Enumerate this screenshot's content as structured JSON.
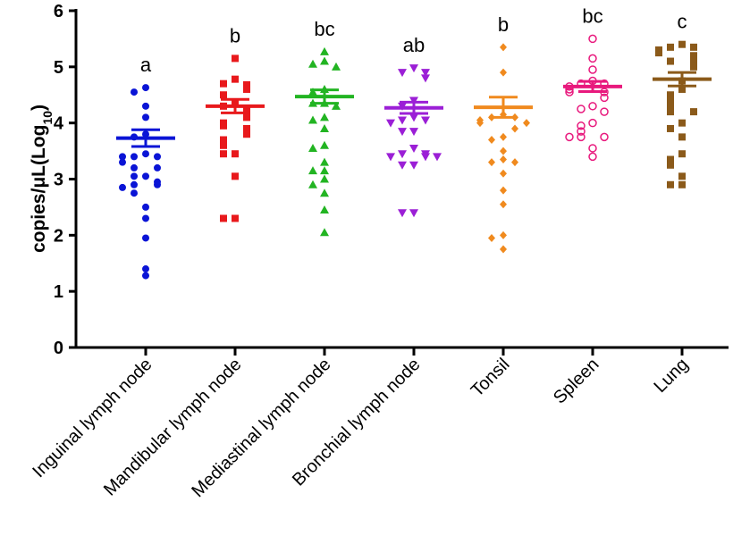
{
  "chart_data": {
    "type": "scatter",
    "subtype": "dot-plot with mean and SEM",
    "ylabel": "copies/μL(Log",
    "ylabel_subscript": "10",
    "ylabel_close": ")",
    "ylim": [
      0,
      6
    ],
    "yticks": [
      "0",
      "1",
      "2",
      "3",
      "4",
      "5",
      "6"
    ],
    "grid": false,
    "categories": [
      "Inguinal lymph node",
      "Mandibular lymph node",
      "Mediastinal lymph node",
      "Bronchial lymph node",
      "Tonsil",
      "Spleen",
      "Lung"
    ],
    "series": [
      {
        "letter": "a",
        "color": "#0a14d6",
        "marker": "circle",
        "mean": 3.73,
        "sem": 0.15,
        "values": [
          4.63,
          4.55,
          4.3,
          4.1,
          3.8,
          3.75,
          3.45,
          3.4,
          3.4,
          3.4,
          3.3,
          3.2,
          3.2,
          3.05,
          3.05,
          2.95,
          2.9,
          2.9,
          2.85,
          2.75,
          2.5,
          2.3,
          1.95,
          1.4,
          1.28
        ]
      },
      {
        "letter": "b",
        "color": "#e8191c",
        "marker": "square",
        "mean": 4.3,
        "sem": 0.12,
        "values": [
          5.15,
          4.78,
          4.7,
          4.68,
          4.6,
          4.5,
          4.35,
          4.3,
          4.25,
          4.2,
          4.15,
          4.1,
          4.0,
          3.95,
          3.9,
          3.85,
          3.8,
          3.7,
          3.6,
          3.45,
          3.45,
          3.05,
          2.3,
          2.3
        ]
      },
      {
        "letter": "bc",
        "color": "#22b422",
        "marker": "triangle-up",
        "mean": 4.47,
        "sem": 0.12,
        "values": [
          5.27,
          5.1,
          5.05,
          5.0,
          4.6,
          4.55,
          4.35,
          4.35,
          4.3,
          4.1,
          4.05,
          3.9,
          3.6,
          3.55,
          3.3,
          3.15,
          3.15,
          3.0,
          2.9,
          2.75,
          2.45,
          2.05
        ]
      },
      {
        "letter": "ab",
        "color": "#9b1fd6",
        "marker": "triangle-down",
        "mean": 4.27,
        "sem": 0.1,
        "values": [
          4.98,
          4.9,
          4.9,
          4.8,
          4.4,
          4.3,
          4.1,
          4.05,
          4.05,
          4.0,
          3.85,
          3.85,
          3.55,
          3.45,
          3.45,
          3.4,
          3.4,
          3.4,
          3.25,
          3.25,
          2.4,
          2.4
        ]
      },
      {
        "letter": "b",
        "color": "#f08a1e",
        "marker": "diamond",
        "mean": 4.28,
        "sem": 0.18,
        "values": [
          5.35,
          4.9,
          4.15,
          4.1,
          4.1,
          4.05,
          4.0,
          4.0,
          3.9,
          3.75,
          3.7,
          3.5,
          3.35,
          3.3,
          3.3,
          3.1,
          2.8,
          2.55,
          2.0,
          1.95,
          1.75
        ]
      },
      {
        "letter": "bc",
        "color": "#e8197d",
        "marker": "open-circle",
        "mean": 4.65,
        "sem": 0.09,
        "values": [
          5.5,
          5.15,
          4.95,
          4.75,
          4.7,
          4.7,
          4.65,
          4.6,
          4.55,
          4.55,
          4.45,
          4.3,
          4.25,
          4.2,
          4.0,
          3.95,
          3.85,
          3.75,
          3.75,
          3.75,
          3.55,
          3.4
        ]
      },
      {
        "letter": "c",
        "color": "#8b5a1a",
        "marker": "square",
        "mean": 4.78,
        "sem": 0.12,
        "values": [
          5.4,
          5.35,
          5.35,
          5.3,
          5.25,
          5.2,
          5.1,
          5.1,
          5.0,
          4.75,
          4.6,
          4.5,
          4.45,
          4.35,
          4.3,
          4.2,
          4.2,
          4.0,
          3.9,
          3.75,
          3.45,
          3.35,
          3.25,
          3.05,
          2.9,
          2.9
        ]
      }
    ]
  }
}
